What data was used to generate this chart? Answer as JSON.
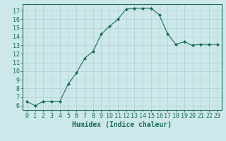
{
  "xlabel": "Humidex (Indice chaleur)",
  "ylabel": "",
  "x": [
    0,
    1,
    2,
    3,
    4,
    5,
    6,
    7,
    8,
    9,
    10,
    11,
    12,
    13,
    14,
    15,
    16,
    17,
    18,
    19,
    20,
    21,
    22,
    23
  ],
  "y": [
    6.5,
    6.0,
    6.5,
    6.5,
    6.5,
    8.5,
    9.8,
    11.5,
    12.3,
    14.3,
    15.2,
    16.0,
    17.2,
    17.3,
    17.3,
    17.3,
    16.5,
    14.3,
    13.1,
    13.4,
    13.0,
    13.1,
    13.1,
    13.1
  ],
  "line_color": "#1a6b5a",
  "marker": "D",
  "marker_size": 2,
  "bg_color": "#cde8ea",
  "grid_color": "#b0d0d4",
  "ylim": [
    5.5,
    17.75
  ],
  "yticks": [
    6,
    7,
    8,
    9,
    10,
    11,
    12,
    13,
    14,
    15,
    16,
    17
  ],
  "xlim": [
    -0.5,
    23.5
  ],
  "tick_fontsize": 6,
  "label_fontsize": 7
}
